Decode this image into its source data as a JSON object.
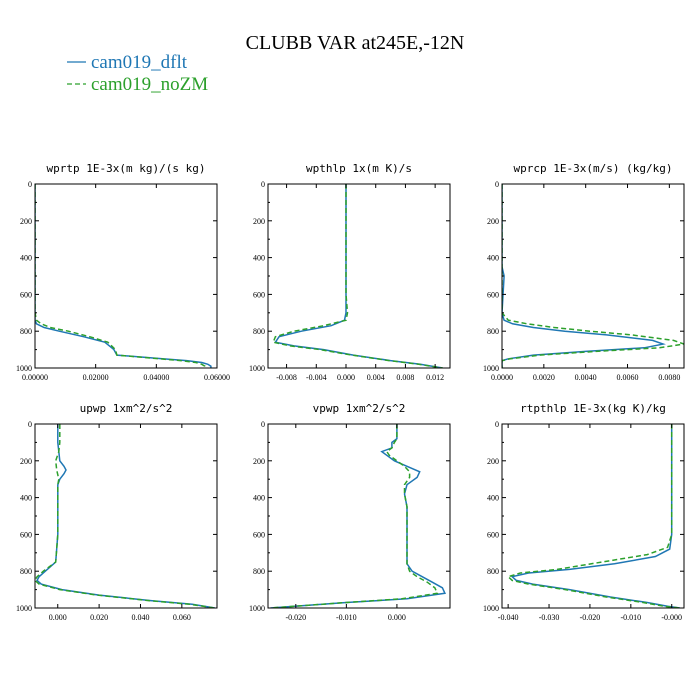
{
  "figure_title": "CLUBB VAR at245E,-12N",
  "colors": {
    "dflt": "#1f77b4",
    "noZM": "#2ca02c"
  },
  "legend": [
    {
      "label": "cam019_dflt",
      "color": "#1f77b4",
      "dash": ""
    },
    {
      "label": "cam019_noZM",
      "color": "#2ca02c",
      "dash": "5,3"
    }
  ],
  "chart_data": [
    {
      "type": "line",
      "title": "wprtp  1E-3x(m kg)/(s kg)",
      "xlim": [
        0,
        0.06
      ],
      "ylim": [
        1000,
        0
      ],
      "xticks": [
        0,
        0.02,
        0.04,
        0.06
      ],
      "xtick_labels": [
        "0.00000",
        "0.02000",
        "0.04000",
        "0.06000"
      ],
      "yticks": [
        0,
        200,
        400,
        600,
        800,
        1000
      ],
      "ytick_labels": [
        "0",
        "200",
        "400",
        "600",
        "800",
        "1000"
      ],
      "series": [
        {
          "name": "cam019_dflt",
          "y": [
            0,
            300,
            600,
            700,
            740,
            760,
            780,
            800,
            830,
            860,
            900,
            930,
            950,
            960,
            970,
            980,
            990,
            1000
          ],
          "x": [
            0,
            0,
            0,
            0,
            0,
            0.0005,
            0.003,
            0.008,
            0.016,
            0.023,
            0.026,
            0.027,
            0.042,
            0.05,
            0.055,
            0.057,
            0.058,
            0.058
          ]
        },
        {
          "name": "cam019_noZM",
          "y": [
            0,
            300,
            600,
            700,
            740,
            760,
            780,
            800,
            830,
            860,
            900,
            930,
            950,
            960,
            970,
            980,
            990,
            1000
          ],
          "x": [
            0,
            0,
            0,
            0,
            0.0005,
            0.002,
            0.005,
            0.011,
            0.018,
            0.024,
            0.0265,
            0.027,
            0.041,
            0.048,
            0.053,
            0.055,
            0.056,
            0.056
          ]
        }
      ]
    },
    {
      "type": "line",
      "title": "wpthlp  1x(m K)/s",
      "xlim": [
        -0.0105,
        0.014
      ],
      "ylim": [
        1000,
        0
      ],
      "xticks": [
        -0.008,
        -0.004,
        0,
        0.004,
        0.008,
        0.012
      ],
      "xtick_labels": [
        "-0.008",
        "-0.004",
        "0.000",
        "0.004",
        "0.008",
        "0.012"
      ],
      "yticks": [
        0,
        200,
        400,
        600,
        800,
        1000
      ],
      "ytick_labels": [
        "0",
        "200",
        "400",
        "600",
        "800",
        "1000"
      ],
      "series": [
        {
          "name": "cam019_dflt",
          "y": [
            0,
            300,
            600,
            700,
            740,
            770,
            800,
            830,
            860,
            880,
            900,
            930,
            960,
            980,
            1000
          ],
          "x": [
            0,
            0,
            0,
            0,
            -0.0002,
            -0.002,
            -0.006,
            -0.009,
            -0.0095,
            -0.007,
            -0.003,
            0.001,
            0.006,
            0.01,
            0.013
          ]
        },
        {
          "name": "cam019_noZM",
          "y": [
            0,
            300,
            600,
            700,
            740,
            770,
            800,
            830,
            860,
            880,
            900,
            930,
            960,
            980,
            1000
          ],
          "x": [
            0,
            0,
            0,
            0.0002,
            0,
            -0.003,
            -0.007,
            -0.0095,
            -0.0098,
            -0.0075,
            -0.0035,
            0.0008,
            0.0058,
            0.0098,
            0.013
          ]
        }
      ]
    },
    {
      "type": "line",
      "title": "wprcp  1E-3x(m/s) (kg/kg)",
      "xlim": [
        0,
        0.0087
      ],
      "ylim": [
        1000,
        0
      ],
      "xticks": [
        0,
        0.002,
        0.004,
        0.006,
        0.008
      ],
      "xtick_labels": [
        "0.0000",
        "0.0020",
        "0.0040",
        "0.0060",
        "0.0080"
      ],
      "yticks": [
        0,
        200,
        400,
        600,
        800,
        1000
      ],
      "ytick_labels": [
        "0",
        "200",
        "400",
        "600",
        "800",
        "1000"
      ],
      "series": [
        {
          "name": "cam019_dflt",
          "y": [
            0,
            450,
            500,
            700,
            740,
            760,
            780,
            800,
            820,
            850,
            870,
            890,
            910,
            930,
            950,
            960,
            980,
            1000
          ],
          "x": [
            0,
            0,
            0.0001,
            0,
            0.0001,
            0.0005,
            0.0015,
            0.003,
            0.005,
            0.0072,
            0.0077,
            0.0068,
            0.004,
            0.0015,
            0.0003,
            0,
            0,
            0
          ]
        },
        {
          "name": "cam019_noZM",
          "y": [
            0,
            450,
            500,
            700,
            740,
            760,
            780,
            800,
            820,
            850,
            870,
            890,
            910,
            930,
            950,
            960,
            980,
            1000
          ],
          "x": [
            0,
            0,
            0,
            0,
            0.0003,
            0.0012,
            0.0025,
            0.0042,
            0.0062,
            0.0082,
            0.0087,
            0.0075,
            0.0045,
            0.0018,
            0.0004,
            0,
            0,
            0
          ]
        }
      ]
    },
    {
      "type": "line",
      "title": "upwp   1xm^2/s^2",
      "xlim": [
        -0.011,
        0.077
      ],
      "ylim": [
        1000,
        0
      ],
      "xticks": [
        0,
        0.02,
        0.04,
        0.06
      ],
      "xtick_labels": [
        "0.000",
        "0.020",
        "0.040",
        "0.060"
      ],
      "yticks": [
        0,
        200,
        400,
        600,
        800,
        1000
      ],
      "ytick_labels": [
        "0",
        "200",
        "400",
        "600",
        "800",
        "1000"
      ],
      "series": [
        {
          "name": "cam019_dflt",
          "y": [
            0,
            100,
            150,
            200,
            230,
            250,
            270,
            300,
            330,
            400,
            600,
            750,
            800,
            830,
            850,
            870,
            900,
            930,
            960,
            980,
            1000
          ],
          "x": [
            0,
            0,
            0.0005,
            0.001,
            0.003,
            0.004,
            0.003,
            0.001,
            0,
            0,
            0,
            -0.001,
            -0.006,
            -0.009,
            -0.01,
            -0.008,
            0.002,
            0.02,
            0.045,
            0.065,
            0.076
          ]
        },
        {
          "name": "cam019_noZM",
          "y": [
            0,
            100,
            150,
            200,
            250,
            300,
            330,
            400,
            600,
            750,
            800,
            830,
            850,
            870,
            900,
            930,
            960,
            980,
            1000
          ],
          "x": [
            0.001,
            0.001,
            0.0005,
            -0.001,
            -0.0005,
            0.0005,
            0,
            0,
            0,
            -0.001,
            -0.007,
            -0.01,
            -0.011,
            -0.009,
            0.001,
            0.019,
            0.044,
            0.064,
            0.076
          ]
        }
      ]
    },
    {
      "type": "line",
      "title": "vpwp   1xm^2/s^2",
      "xlim": [
        -0.0255,
        0.0105
      ],
      "ylim": [
        1000,
        0
      ],
      "xticks": [
        -0.02,
        -0.01,
        0
      ],
      "xtick_labels": [
        "-0.020",
        "-0.010",
        "0.000"
      ],
      "yticks": [
        0,
        200,
        400,
        600,
        800,
        1000
      ],
      "ytick_labels": [
        "0",
        "200",
        "400",
        "600",
        "800",
        "1000"
      ],
      "series": [
        {
          "name": "cam019_dflt",
          "y": [
            0,
            80,
            100,
            130,
            150,
            170,
            200,
            230,
            260,
            290,
            330,
            380,
            450,
            600,
            760,
            800,
            830,
            860,
            890,
            920,
            950,
            970,
            1000
          ],
          "x": [
            0,
            0,
            -0.001,
            -0.001,
            -0.003,
            -0.002,
            -0.0005,
            0.002,
            0.0045,
            0.004,
            0.002,
            0.0015,
            0.002,
            0.002,
            0.002,
            0.003,
            0.005,
            0.007,
            0.009,
            0.0095,
            0.002,
            -0.01,
            -0.025
          ]
        },
        {
          "name": "cam019_noZM",
          "y": [
            0,
            80,
            100,
            130,
            150,
            170,
            200,
            230,
            260,
            290,
            330,
            380,
            450,
            600,
            760,
            800,
            830,
            860,
            890,
            920,
            950,
            970,
            1000
          ],
          "x": [
            0,
            0,
            -0.0005,
            -0.001,
            -0.002,
            -0.0015,
            0,
            0.0015,
            0.0025,
            0.0025,
            0.0015,
            0.0015,
            0.002,
            0.002,
            0.002,
            0.0025,
            0.004,
            0.006,
            0.0075,
            0.008,
            0.001,
            -0.01,
            -0.025
          ]
        }
      ]
    },
    {
      "type": "line",
      "title": "rtpthlp  1E-3x(kg K)/kg",
      "xlim": [
        -0.0415,
        0.003
      ],
      "ylim": [
        1000,
        0
      ],
      "xticks": [
        -0.04,
        -0.03,
        -0.02,
        -0.01,
        0
      ],
      "xtick_labels": [
        "-0.040",
        "-0.030",
        "-0.020",
        "-0.010",
        "-0.000"
      ],
      "yticks": [
        0,
        200,
        400,
        600,
        800,
        1000
      ],
      "ytick_labels": [
        "0",
        "200",
        "400",
        "600",
        "800",
        "1000"
      ],
      "series": [
        {
          "name": "cam019_dflt",
          "y": [
            0,
            600,
            680,
            720,
            760,
            790,
            810,
            830,
            850,
            870,
            900,
            940,
            970,
            990,
            1000
          ],
          "x": [
            0,
            0,
            -0.0005,
            -0.004,
            -0.014,
            -0.025,
            -0.035,
            -0.039,
            -0.038,
            -0.034,
            -0.025,
            -0.015,
            -0.006,
            -0.001,
            0.002
          ]
        },
        {
          "name": "cam019_noZM",
          "y": [
            0,
            600,
            670,
            710,
            750,
            790,
            810,
            830,
            850,
            870,
            900,
            940,
            970,
            990,
            1000
          ],
          "x": [
            0,
            0,
            -0.001,
            -0.006,
            -0.017,
            -0.028,
            -0.037,
            -0.04,
            -0.039,
            -0.035,
            -0.026,
            -0.016,
            -0.007,
            -0.002,
            0.002
          ]
        }
      ]
    }
  ]
}
